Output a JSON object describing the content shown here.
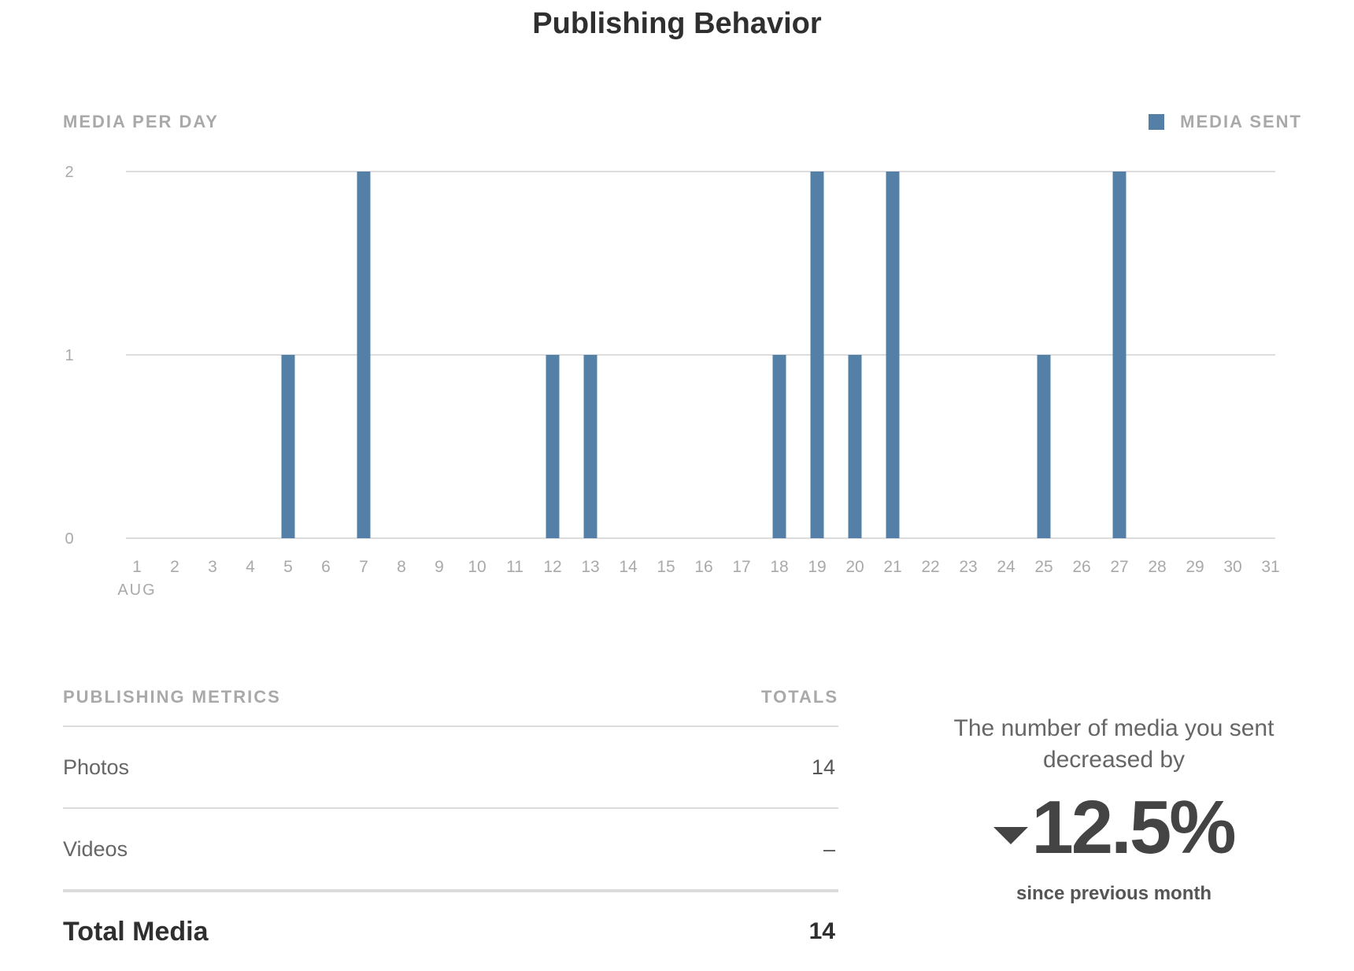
{
  "page": {
    "title": "Publishing Behavior"
  },
  "chart_data": {
    "type": "bar",
    "title": "Publishing Behavior",
    "ylabel": "MEDIA PER DAY",
    "xlabel": "",
    "x_sublabel": "AUG",
    "categories": [
      "1",
      "2",
      "3",
      "4",
      "5",
      "6",
      "7",
      "8",
      "9",
      "10",
      "11",
      "12",
      "13",
      "14",
      "15",
      "16",
      "17",
      "18",
      "19",
      "20",
      "21",
      "22",
      "23",
      "24",
      "25",
      "26",
      "27",
      "28",
      "29",
      "30",
      "31"
    ],
    "series": [
      {
        "name": "MEDIA SENT",
        "color": "#5480a8",
        "values": [
          0,
          0,
          0,
          0,
          1,
          0,
          2,
          0,
          0,
          0,
          0,
          1,
          1,
          0,
          0,
          0,
          0,
          1,
          2,
          1,
          2,
          0,
          0,
          0,
          1,
          0,
          2,
          0,
          0,
          0,
          0
        ]
      }
    ],
    "ylim": [
      0,
      2
    ],
    "yticks": [
      0,
      1,
      2
    ],
    "grid": true,
    "legend": "top-right"
  },
  "metrics": {
    "header_label": "PUBLISHING METRICS",
    "header_totals": "TOTALS",
    "rows": [
      {
        "label": "Photos",
        "value": "14"
      },
      {
        "label": "Videos",
        "value": "–"
      }
    ],
    "total": {
      "label": "Total Media",
      "value": "14"
    }
  },
  "summary": {
    "text": "The number of media you sent decreased by",
    "percent": "12.5%",
    "direction_icon": "down-triangle-icon",
    "subtext": "since previous month"
  },
  "colors": {
    "bar": "#5480a8",
    "grid": "#dddddd",
    "muted_text": "#a9a9a9"
  }
}
